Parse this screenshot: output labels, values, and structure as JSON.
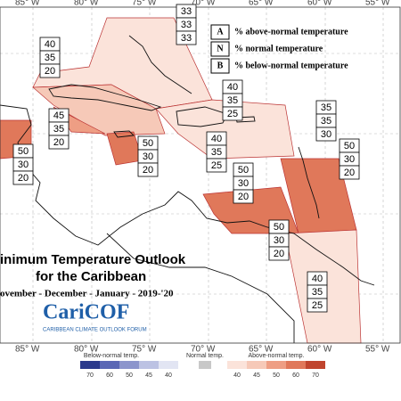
{
  "title": {
    "line1": "inimum Temperature Outlook",
    "line2": "for the Caribbean",
    "period": "ovember - December - January - 2019-'20"
  },
  "longitudes_top": [
    "85° W",
    "80° W",
    "75° W",
    "70° W",
    "65° W",
    "60° W",
    "55° W"
  ],
  "longitudes_bottom": [
    "85° W",
    "80° W",
    "75° W",
    "70° W",
    "65° W",
    "60° W",
    "55° W"
  ],
  "legend": [
    {
      "key": "A",
      "text": "% above-normal temperature"
    },
    {
      "key": "N",
      "text": "% normal temperature"
    },
    {
      "key": "B",
      "text": "% below-normal temperature"
    }
  ],
  "probability_boxes": [
    [
      "40",
      "35",
      "20"
    ],
    [
      "33",
      "33",
      "33"
    ],
    [
      "40",
      "35",
      "25"
    ],
    [
      "35",
      "35",
      "30"
    ],
    [
      "45",
      "35",
      "20"
    ],
    [
      "50",
      "30",
      "20"
    ],
    [
      "40",
      "35",
      "25"
    ],
    [
      "50",
      "30",
      "20"
    ],
    [
      "50",
      "30",
      "20"
    ],
    [
      "50",
      "30",
      "20"
    ],
    [
      "50",
      "30",
      "20"
    ],
    [
      "40",
      "35",
      "25"
    ]
  ],
  "logo": {
    "name": "CariCOF",
    "tagline": "CARIBBEAN CLIMATE OUTLOOK FORUM"
  },
  "colorbar": {
    "below": {
      "label": "Below-normal temp.",
      "ticks": [
        "70",
        "60",
        "50",
        "45",
        "40"
      ]
    },
    "normal": {
      "label": "Normal temp."
    },
    "above": {
      "label": "Above-normal temp.",
      "ticks": [
        "40",
        "45",
        "50",
        "60",
        "70"
      ]
    }
  }
}
